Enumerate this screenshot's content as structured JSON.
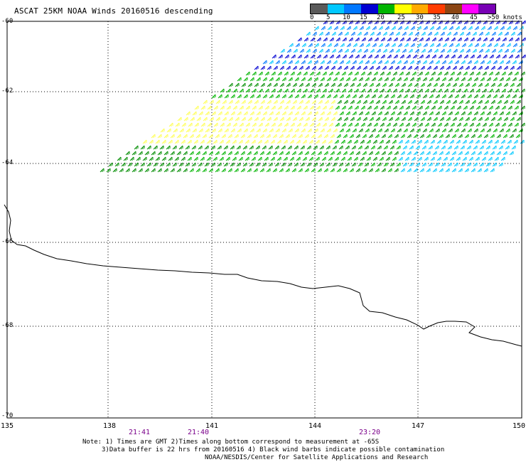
{
  "title": "ASCAT 25KM NOAA Winds 20160516 descending",
  "colorbar": {
    "ticks": [
      "0",
      "5",
      "10",
      "15",
      "20",
      "25",
      "30",
      "35",
      "40",
      "45",
      ">50 knots"
    ],
    "colors": [
      "#5a5a5a",
      "#00c8ff",
      "#0078ff",
      "#0000d2",
      "#00b400",
      "#ffff00",
      "#ffaa00",
      "#ff3c00",
      "#8b4513",
      "#ff00ff",
      "#7800b4"
    ]
  },
  "axes": {
    "lat_labels": [
      "-60",
      "-62",
      "-64",
      "-66",
      "-68",
      "-70"
    ],
    "lon_labels": [
      "135",
      "138",
      "141",
      "144",
      "147",
      "150"
    ]
  },
  "times": [
    "21:41",
    "21:40",
    "23:20"
  ],
  "notes": {
    "line1": "Note: 1) Times are GMT 2)Times along bottom correspond to measurement at -65S",
    "line2": "3)Data buffer is 22 hrs from 20160516 4) Black wind barbs indicate possible contamination",
    "line3": "NOAA/NESDIS/Center for Satellite Applications and Research"
  }
}
